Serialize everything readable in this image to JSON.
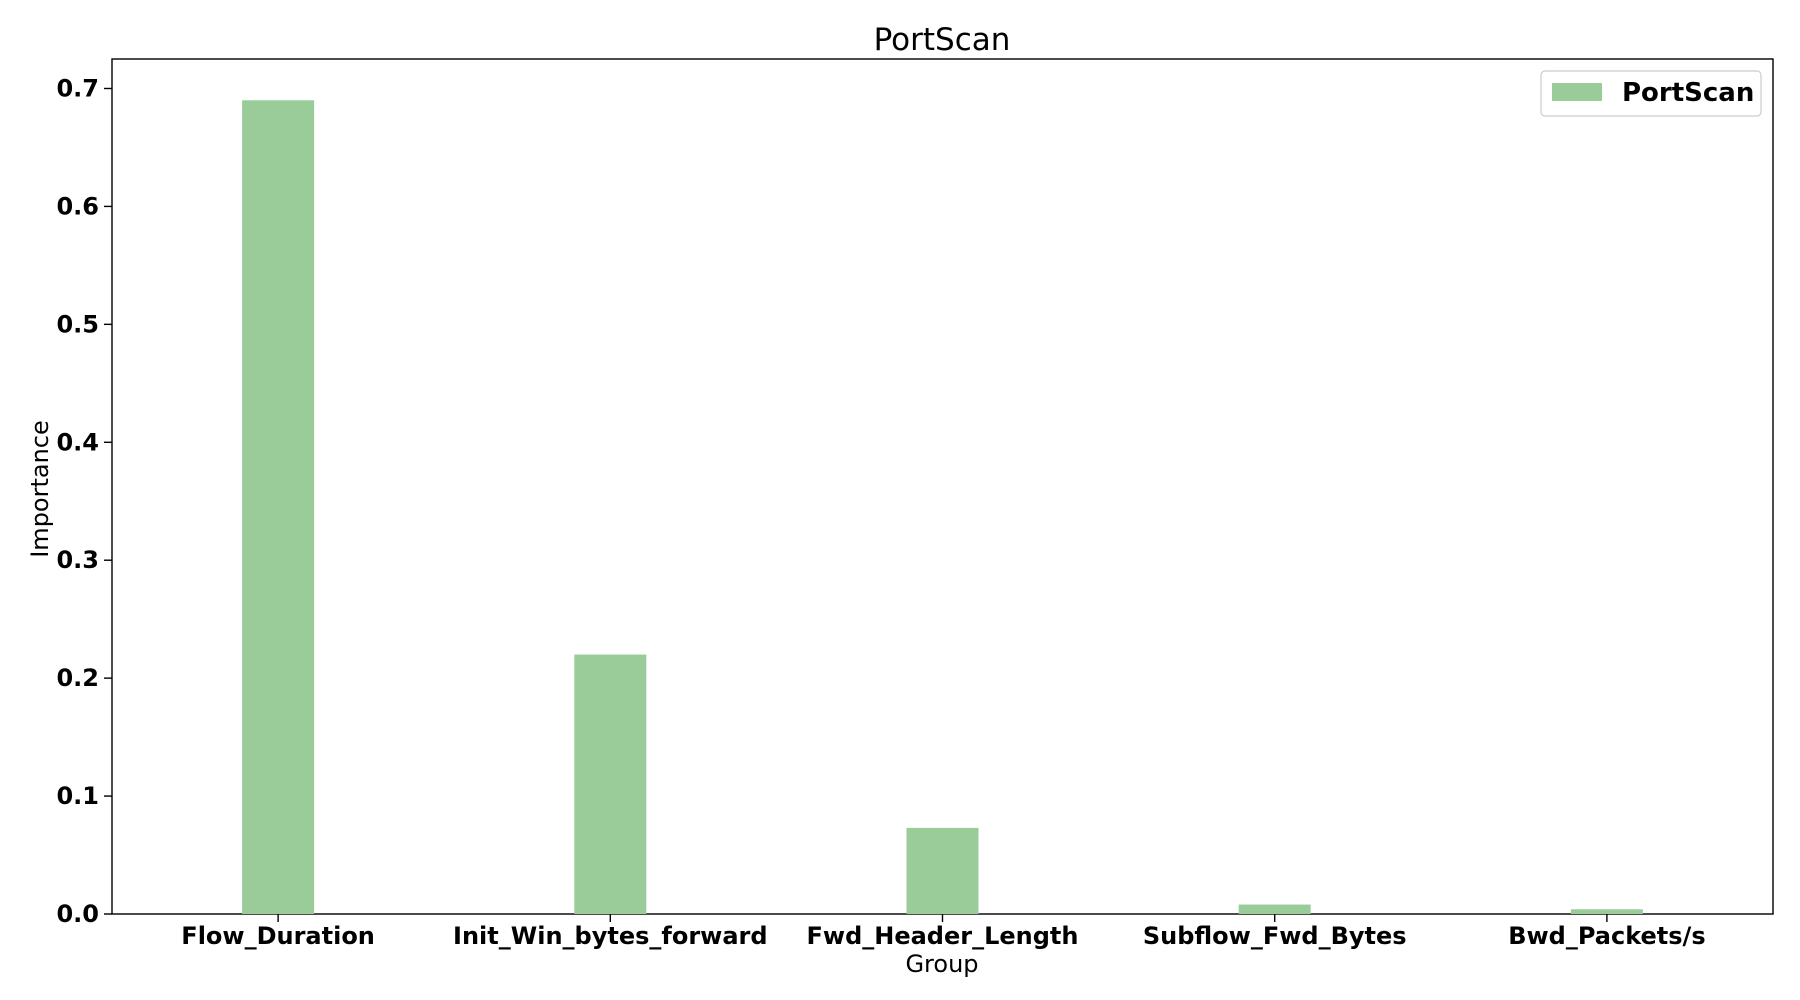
{
  "chart_data": {
    "type": "bar",
    "title": "PortScan",
    "xlabel": "Group",
    "ylabel": "Importance",
    "categories": [
      "Flow_Duration",
      "Init_Win_bytes_forward",
      "Fwd_Header_Length",
      "Subflow_Fwd_Bytes",
      "Bwd_Packets/s"
    ],
    "series": [
      {
        "name": "PortScan",
        "values": [
          0.69,
          0.22,
          0.073,
          0.008,
          0.004
        ],
        "color": "#99cc99"
      }
    ],
    "ylim": [
      0,
      0.725
    ],
    "yticks": [
      "0.0",
      "0.1",
      "0.2",
      "0.3",
      "0.4",
      "0.5",
      "0.6",
      "0.7"
    ],
    "grid": false,
    "legend_position": "top-right"
  }
}
